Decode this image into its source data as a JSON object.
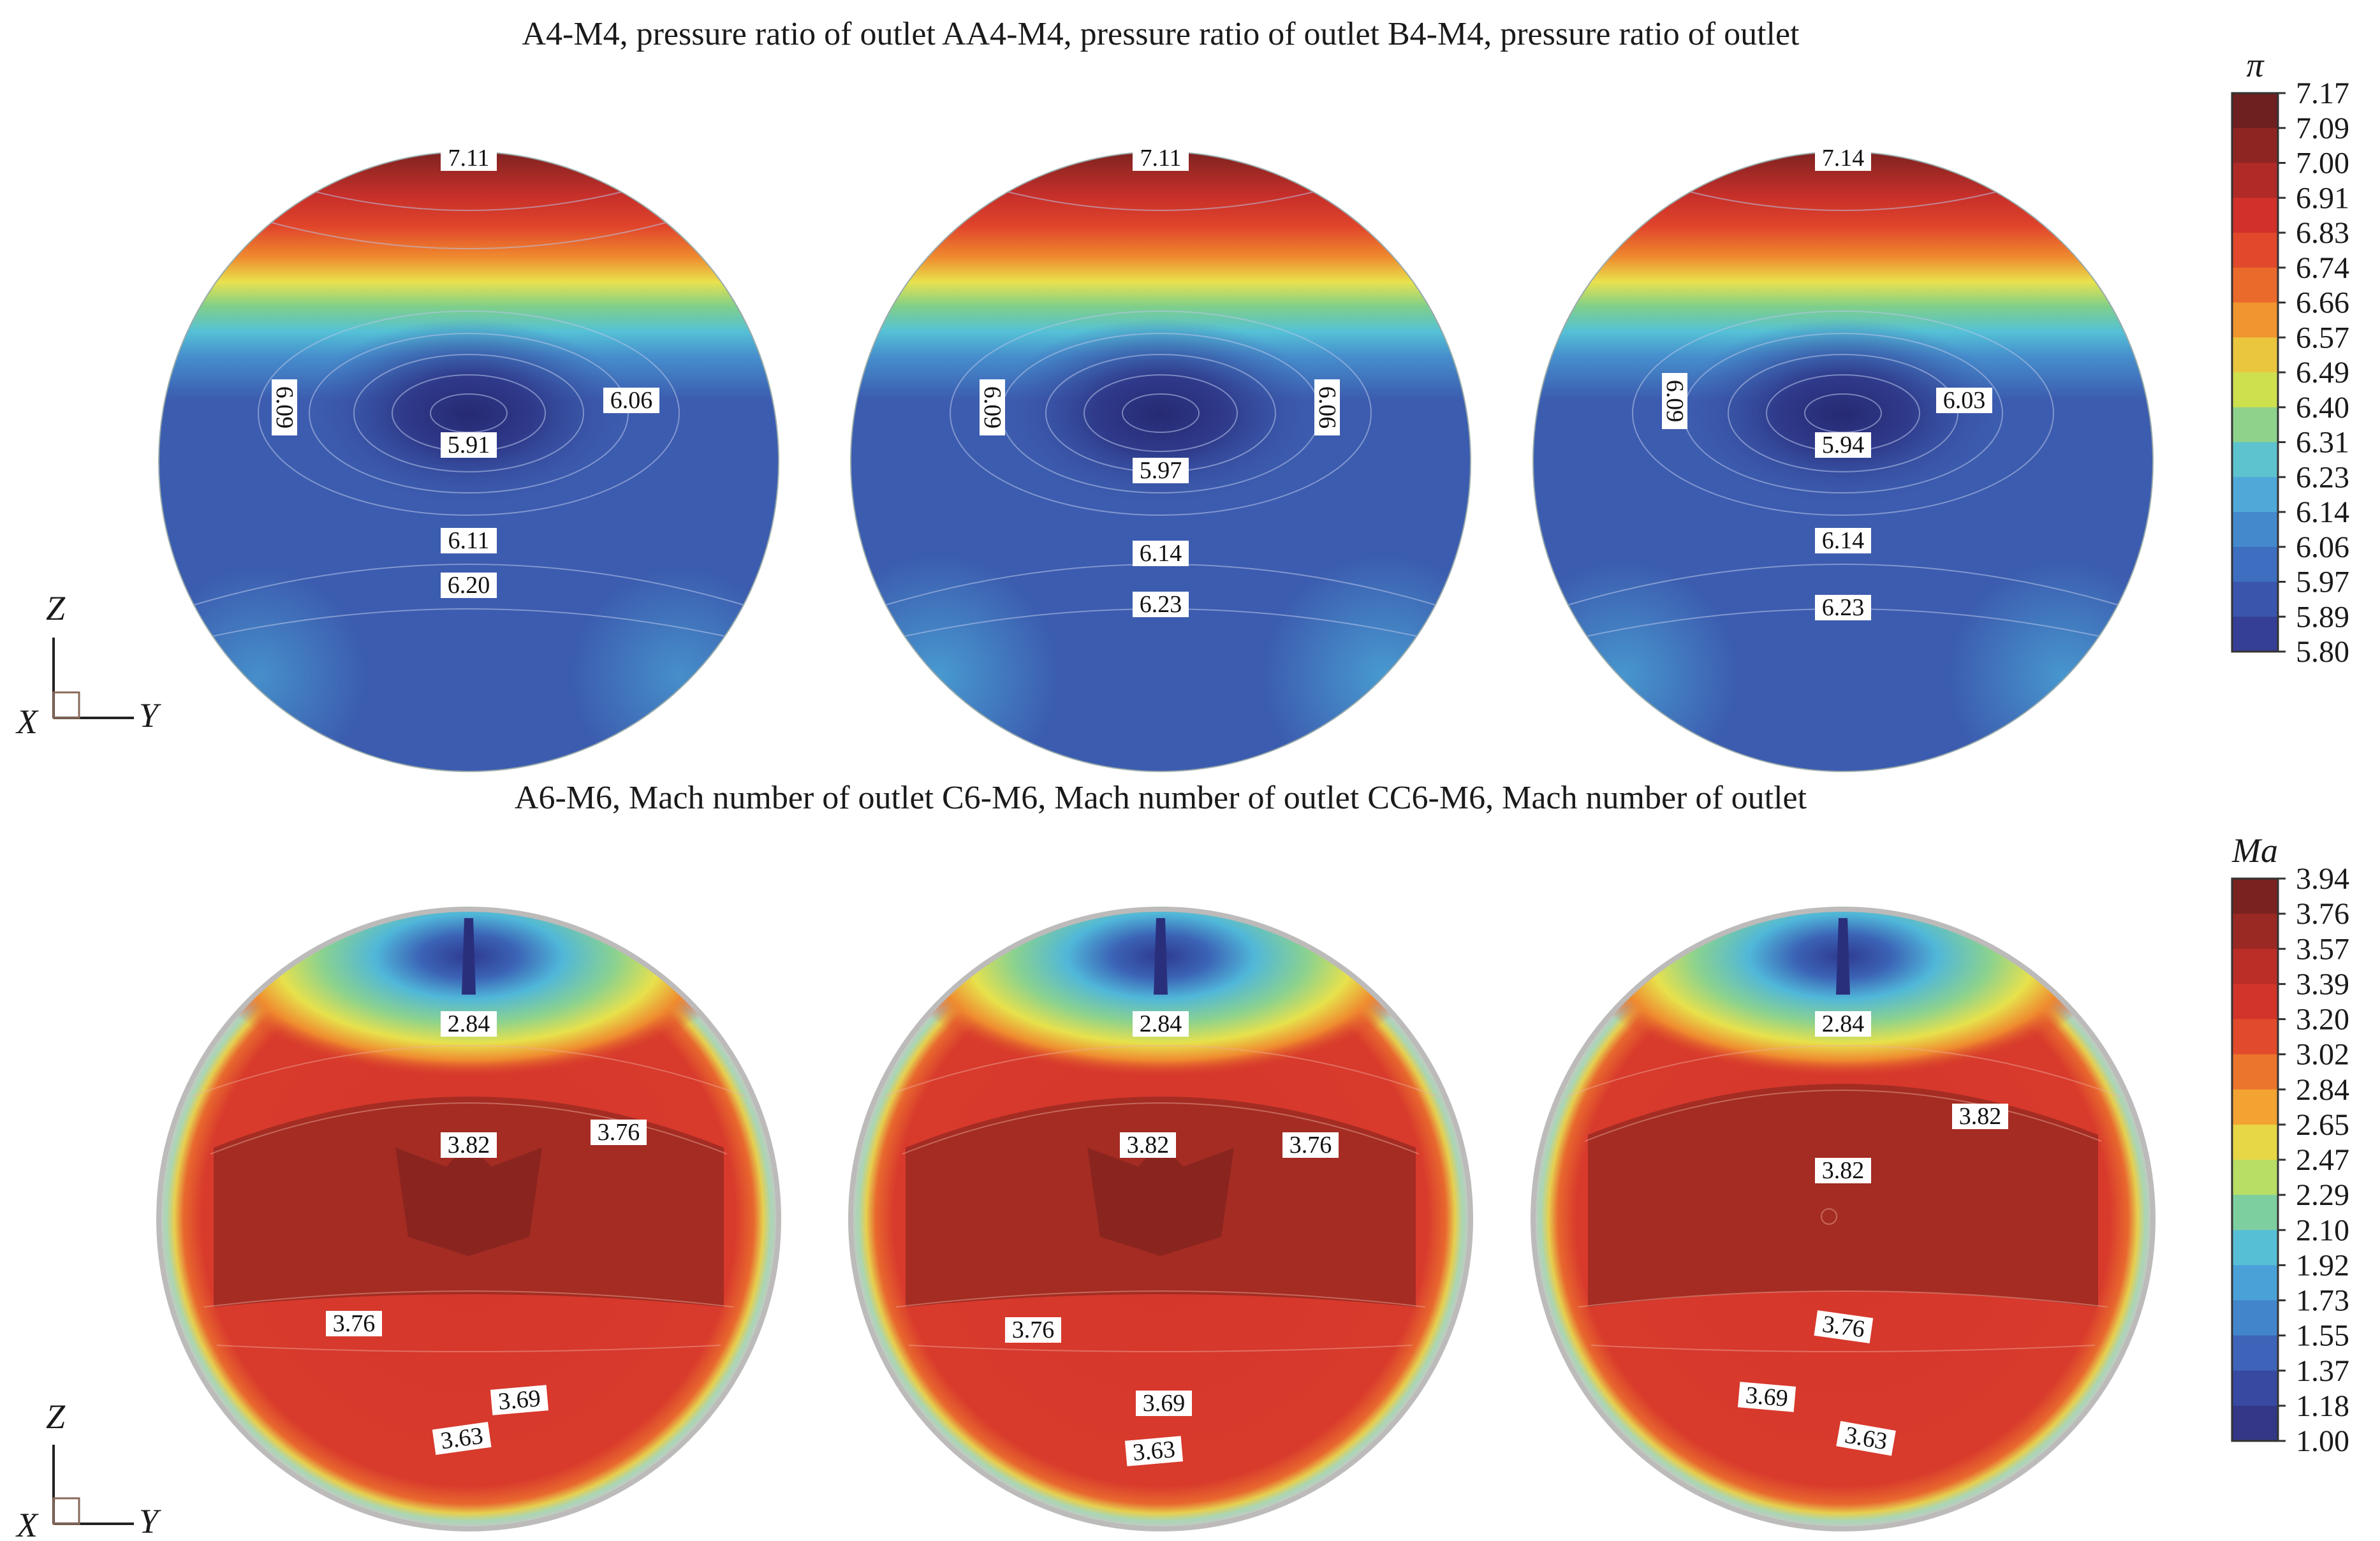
{
  "rows": {
    "top_title": "A4-M4, pressure ratio of outlet AA4-M4, pressure ratio of outlet B4-M4, pressure ratio of outlet",
    "bottom_title": "A6-M6, Mach number of outlet  C6-M6, Mach number of outlet CC6-M6, Mach number of outlet"
  },
  "chart_data": [
    {
      "type": "heatmap",
      "variable": "pressure ratio",
      "colorbar": {
        "label": "π",
        "ticks": [
          "7.17",
          "7.09",
          "7.00",
          "6.91",
          "6.83",
          "6.74",
          "6.66",
          "6.57",
          "6.49",
          "6.40",
          "6.31",
          "6.23",
          "6.14",
          "6.06",
          "5.97",
          "5.89",
          "5.80"
        ],
        "range": [
          5.8,
          7.17
        ]
      },
      "panels": [
        {
          "name": "A4-M4",
          "contour_labels": [
            "7.11",
            "6.09",
            "6.06",
            "5.91",
            "6.11",
            "6.20"
          ]
        },
        {
          "name": "AA4-M4",
          "contour_labels": [
            "7.11",
            "6.09",
            "6.06",
            "5.97",
            "6.14",
            "6.23"
          ]
        },
        {
          "name": "B4-M4",
          "contour_labels": [
            "7.14",
            "6.09",
            "6.03",
            "5.94",
            "6.14",
            "6.23"
          ]
        }
      ],
      "axes": {
        "z": "Z",
        "x": "X",
        "y": "Y"
      }
    },
    {
      "type": "heatmap",
      "variable": "Mach number",
      "colorbar": {
        "label": "Ma",
        "ticks": [
          "3.94",
          "3.76",
          "3.57",
          "3.39",
          "3.20",
          "3.02",
          "2.84",
          "2.65",
          "2.47",
          "2.29",
          "2.10",
          "1.92",
          "1.73",
          "1.55",
          "1.37",
          "1.18",
          "1.00"
        ],
        "range": [
          1.0,
          3.94
        ]
      },
      "panels": [
        {
          "name": "A6-M6",
          "contour_labels": [
            "2.84",
            "3.82",
            "3.76",
            "3.76",
            "3.69",
            "3.63"
          ]
        },
        {
          "name": "C6-M6",
          "contour_labels": [
            "2.84",
            "3.82",
            "3.76",
            "3.76",
            "3.69",
            "3.63"
          ]
        },
        {
          "name": "CC6-M6",
          "contour_labels": [
            "2.84",
            "3.82",
            "3.82",
            "3.76",
            "3.69",
            "3.63"
          ]
        }
      ],
      "axes": {
        "z": "Z",
        "x": "X",
        "y": "Y"
      }
    }
  ],
  "colors": {
    "deep_blue": "#2e3583",
    "mid_blue": "#3f5db0",
    "light_blue": "#4e94cf",
    "cyan": "#5cc6d8",
    "yellow": "#e6e04a",
    "orange": "#ee7f2c",
    "red": "#d8332a",
    "dark_red": "#8b2421",
    "mach_red": "#d5352a",
    "mach_core": "#9b2a22",
    "rim_gray": "#c8c6c6"
  }
}
